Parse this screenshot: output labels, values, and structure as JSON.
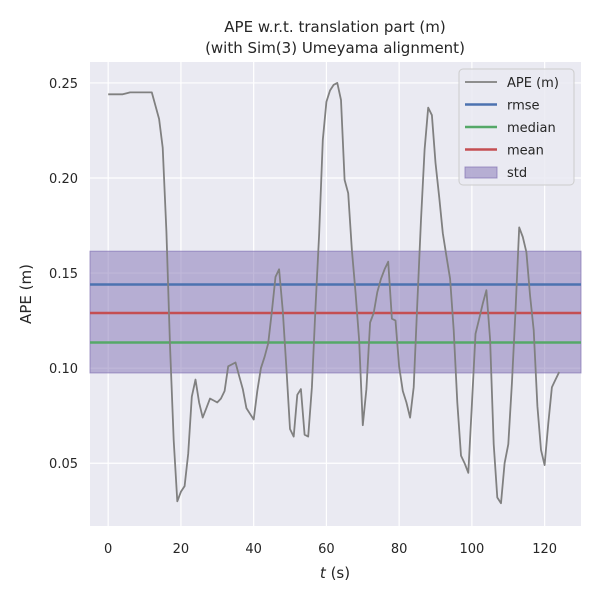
{
  "chart_data": {
    "type": "line",
    "title": [
      "APE w.r.t. translation part (m)",
      "(with Sim(3) Umeyama alignment)"
    ],
    "xlabel": "t (s)",
    "xlabel_italic_part": "t",
    "xlabel_rest": " (s)",
    "ylabel": "APE (m)",
    "xlim": [
      -5,
      130
    ],
    "ylim": [
      0.017,
      0.261
    ],
    "xticks": [
      0,
      20,
      40,
      60,
      80,
      100,
      120
    ],
    "yticks": [
      0.05,
      0.1,
      0.15,
      0.2,
      0.25
    ],
    "ytick_labels": [
      "0.05",
      "0.10",
      "0.15",
      "0.20",
      "0.25"
    ],
    "grid": true,
    "legend_position": "top-right",
    "series": [
      {
        "name": "APE (m)",
        "color": "#808080",
        "x": [
          0,
          2,
          4,
          6,
          8,
          10,
          12,
          14,
          15,
          16,
          17,
          18,
          19,
          20,
          21,
          22,
          23,
          24,
          25,
          26,
          27,
          28,
          29,
          30,
          31,
          32,
          33,
          35,
          36,
          37,
          38,
          39,
          40,
          41,
          42,
          43,
          44,
          45,
          46,
          47,
          48,
          49,
          50,
          51,
          52,
          53,
          54,
          55,
          56,
          57,
          58,
          59,
          60,
          61,
          62,
          63,
          64,
          65,
          66,
          67,
          68,
          69,
          70,
          71,
          72,
          73,
          74,
          75,
          76,
          77,
          78,
          79,
          80,
          81,
          82,
          83,
          84,
          85,
          86,
          87,
          88,
          89,
          90,
          91,
          92,
          93,
          94,
          95,
          96,
          97,
          98,
          99,
          100,
          101,
          102,
          103,
          104,
          105,
          106,
          107,
          108,
          109,
          110,
          111,
          112,
          113,
          114,
          115,
          116,
          117,
          118,
          119,
          120,
          121,
          122,
          123,
          124
        ],
        "y": [
          0.244,
          0.244,
          0.244,
          0.245,
          0.245,
          0.245,
          0.245,
          0.231,
          0.216,
          0.172,
          0.112,
          0.062,
          0.03,
          0.035,
          0.038,
          0.055,
          0.085,
          0.094,
          0.082,
          0.074,
          0.079,
          0.084,
          0.083,
          0.082,
          0.084,
          0.088,
          0.101,
          0.103,
          0.096,
          0.089,
          0.079,
          0.076,
          0.073,
          0.088,
          0.1,
          0.106,
          0.113,
          0.13,
          0.148,
          0.152,
          0.13,
          0.1,
          0.068,
          0.064,
          0.086,
          0.089,
          0.065,
          0.064,
          0.09,
          0.132,
          0.17,
          0.22,
          0.24,
          0.246,
          0.249,
          0.25,
          0.241,
          0.199,
          0.192,
          0.162,
          0.14,
          0.115,
          0.07,
          0.089,
          0.124,
          0.129,
          0.14,
          0.147,
          0.152,
          0.156,
          0.126,
          0.125,
          0.101,
          0.088,
          0.082,
          0.074,
          0.09,
          0.134,
          0.178,
          0.215,
          0.237,
          0.233,
          0.208,
          0.19,
          0.171,
          0.159,
          0.147,
          0.12,
          0.082,
          0.054,
          0.05,
          0.045,
          0.081,
          0.118,
          0.126,
          0.134,
          0.141,
          0.115,
          0.06,
          0.032,
          0.029,
          0.05,
          0.06,
          0.092,
          0.13,
          0.174,
          0.169,
          0.161,
          0.138,
          0.12,
          0.08,
          0.057,
          0.049,
          0.071,
          0.09,
          0.094,
          0.098
        ]
      },
      {
        "name": "rmse",
        "color": "#4c72b0",
        "value": 0.144
      },
      {
        "name": "median",
        "color": "#55a868",
        "value": 0.1135
      },
      {
        "name": "mean",
        "color": "#c44e52",
        "value": 0.129
      },
      {
        "name": "std",
        "color": "#8172b3",
        "range": [
          0.0975,
          0.1615
        ]
      }
    ],
    "legend": [
      "APE (m)",
      "rmse",
      "median",
      "mean",
      "std"
    ]
  },
  "colors": {
    "plot_background": "#eaeaf2",
    "grid": "#ffffff",
    "std_fill": "rgba(129,114,179,0.5)"
  }
}
